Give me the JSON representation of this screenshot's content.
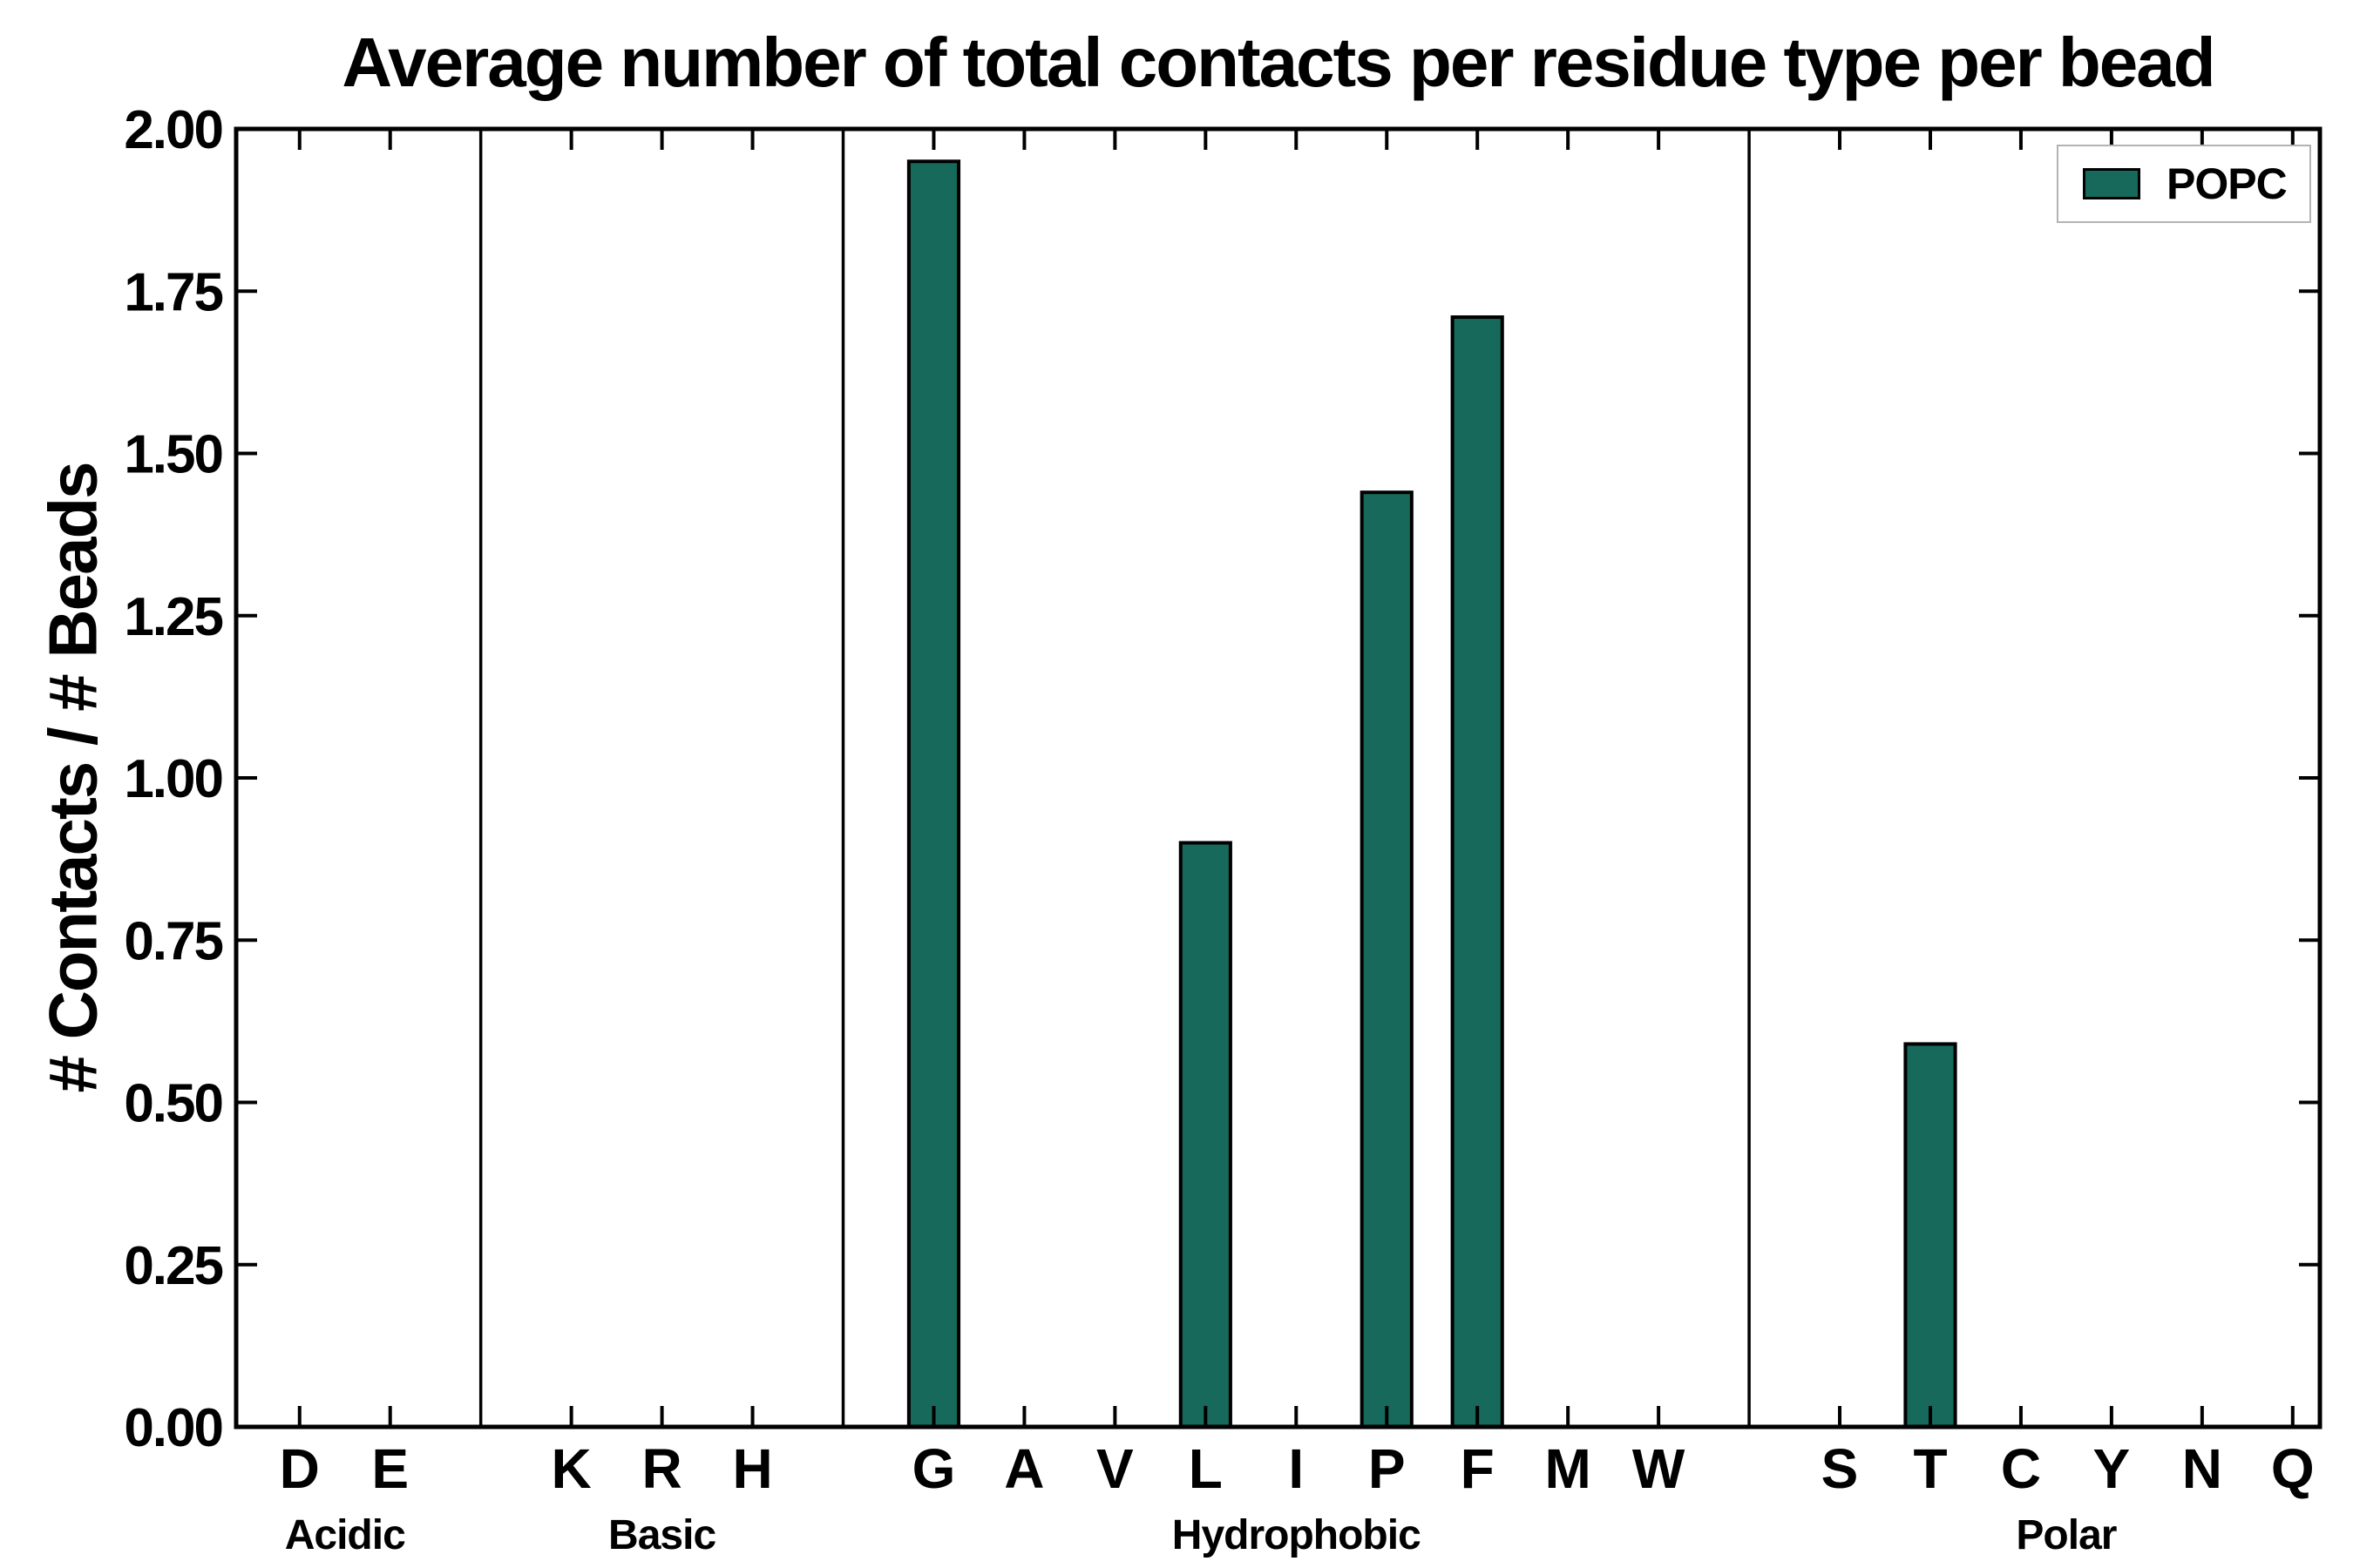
{
  "chart_data": {
    "type": "bar",
    "title": "Average number of total contacts per residue type per bead",
    "ylabel": "# Contacts / # Beads",
    "xlabel": "",
    "ylim": [
      0,
      2.0
    ],
    "ytick_step": 0.25,
    "grid": false,
    "bar_color": "#16695b",
    "bar_edge_color": "#000000",
    "frame_color": "#000000",
    "legend": {
      "position": "upper right",
      "entries": [
        {
          "label": "POPC",
          "color": "#16695b"
        }
      ]
    },
    "groups": [
      {
        "label": "Acidic",
        "categories": [
          "D",
          "E"
        ],
        "values": [
          0,
          0
        ]
      },
      {
        "label": "Basic",
        "categories": [
          "K",
          "R",
          "H"
        ],
        "values": [
          0,
          0,
          0
        ]
      },
      {
        "label": "Hydrophobic",
        "categories": [
          "G",
          "A",
          "V",
          "L",
          "I",
          "P",
          "F",
          "M",
          "W"
        ],
        "values": [
          1.95,
          0,
          0,
          0.9,
          0,
          1.44,
          1.71,
          0,
          0
        ]
      },
      {
        "label": "Polar",
        "categories": [
          "S",
          "T",
          "C",
          "Y",
          "N",
          "Q"
        ],
        "values": [
          0,
          0.59,
          0,
          0,
          0,
          0
        ]
      }
    ]
  }
}
